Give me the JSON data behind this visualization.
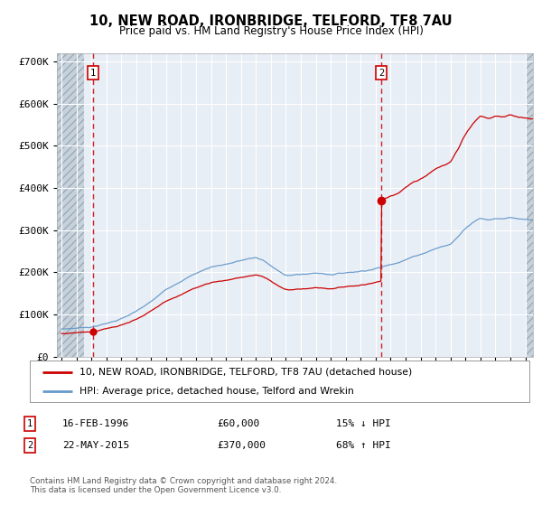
{
  "title": "10, NEW ROAD, IRONBRIDGE, TELFORD, TF8 7AU",
  "subtitle": "Price paid vs. HM Land Registry's House Price Index (HPI)",
  "plot_bg_color": "#e8eef5",
  "hatch_region_end": 1995.5,
  "red_line_label": "10, NEW ROAD, IRONBRIDGE, TELFORD, TF8 7AU (detached house)",
  "blue_line_label": "HPI: Average price, detached house, Telford and Wrekin",
  "footer": "Contains HM Land Registry data © Crown copyright and database right 2024.\nThis data is licensed under the Open Government Licence v3.0.",
  "sale1_date": 1996.12,
  "sale1_price": 60000,
  "sale1_label": "16-FEB-1996",
  "sale1_price_label": "£60,000",
  "sale1_hpi": "15% ↓ HPI",
  "sale2_date": 2015.38,
  "sale2_price": 370000,
  "sale2_label": "22-MAY-2015",
  "sale2_price_label": "£370,000",
  "sale2_hpi": "68% ↑ HPI",
  "ylim": [
    0,
    720000
  ],
  "xlim_start": 1993.7,
  "xlim_end": 2025.5,
  "yticks": [
    0,
    100000,
    200000,
    300000,
    400000,
    500000,
    600000,
    700000
  ],
  "ytick_labels": [
    "£0",
    "£100K",
    "£200K",
    "£300K",
    "£400K",
    "£500K",
    "£600K",
    "£700K"
  ],
  "xticks": [
    1994,
    1995,
    1996,
    1997,
    1998,
    1999,
    2000,
    2001,
    2002,
    2003,
    2004,
    2005,
    2006,
    2007,
    2008,
    2009,
    2010,
    2011,
    2012,
    2013,
    2014,
    2015,
    2016,
    2017,
    2018,
    2019,
    2020,
    2021,
    2022,
    2023,
    2024,
    2025
  ],
  "red_color": "#cc0000",
  "blue_color": "#6699cc",
  "grid_color": "#cccccc",
  "white_grid_color": "#ffffff",
  "hatch_color": "#b0bec8"
}
